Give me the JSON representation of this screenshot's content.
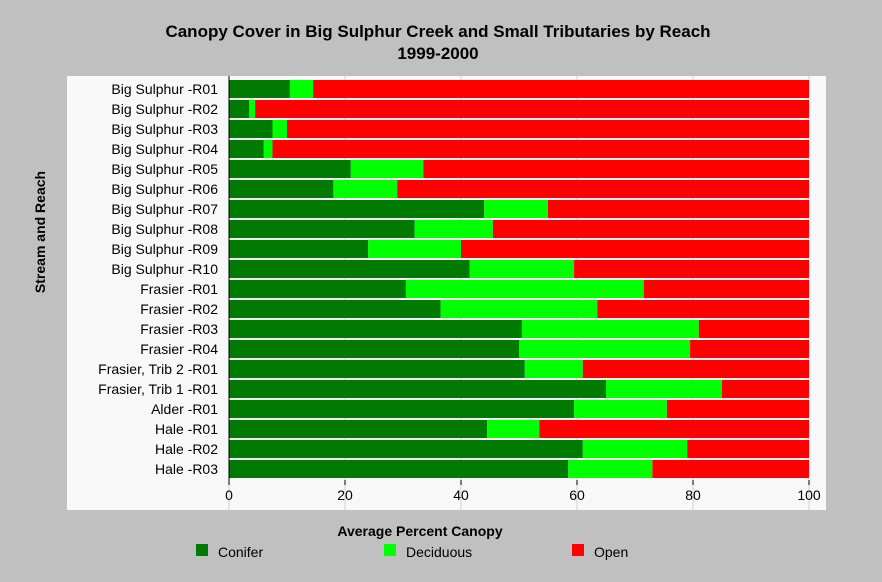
{
  "chart_data": {
    "type": "bar",
    "orientation": "horizontal",
    "stacked": true,
    "title": "Canopy Cover in Big Sulphur Creek and Small Tributaries by Reach",
    "subtitle": "1999-2000",
    "xlabel": "Average Percent Canopy",
    "ylabel": "Stream and Reach",
    "xlim": [
      0,
      100
    ],
    "xticks": [
      0,
      20,
      40,
      60,
      80,
      100
    ],
    "grid": "vertical",
    "legend_position": "bottom",
    "categories": [
      "Big Sulphur -R01",
      "Big Sulphur -R02",
      "Big Sulphur -R03",
      "Big Sulphur -R04",
      "Big Sulphur -R05",
      "Big Sulphur -R06",
      "Big Sulphur -R07",
      "Big Sulphur -R08",
      "Big Sulphur -R09",
      "Big Sulphur -R10",
      "Frasier -R01",
      "Frasier -R02",
      "Frasier -R03",
      "Frasier -R04",
      "Frasier, Trib 2 -R01",
      "Frasier, Trib 1 -R01",
      "Alder -R01",
      "Hale -R01",
      "Hale -R02",
      "Hale -R03"
    ],
    "series": [
      {
        "name": "Conifer",
        "color": "#007a00",
        "values": [
          10.5,
          3.5,
          7.5,
          6,
          21,
          18,
          44,
          32,
          24,
          41.5,
          30.5,
          36.5,
          50.5,
          50,
          51,
          65,
          59.5,
          44.5,
          61,
          58.5
        ]
      },
      {
        "name": "Deciduous",
        "color": "#00ff00",
        "values": [
          4,
          1,
          2.5,
          1.5,
          12.5,
          11,
          11,
          13.5,
          16,
          18,
          41,
          27,
          30.5,
          29.5,
          10,
          20,
          16,
          9,
          18,
          14.5
        ]
      },
      {
        "name": "Open",
        "color": "#ff0000",
        "values": [
          85.5,
          95.5,
          90,
          92.5,
          66.5,
          71,
          45,
          54.5,
          60,
          40.5,
          28.5,
          36.5,
          19,
          20.5,
          39,
          15,
          24.5,
          46.5,
          21,
          27
        ]
      }
    ]
  }
}
